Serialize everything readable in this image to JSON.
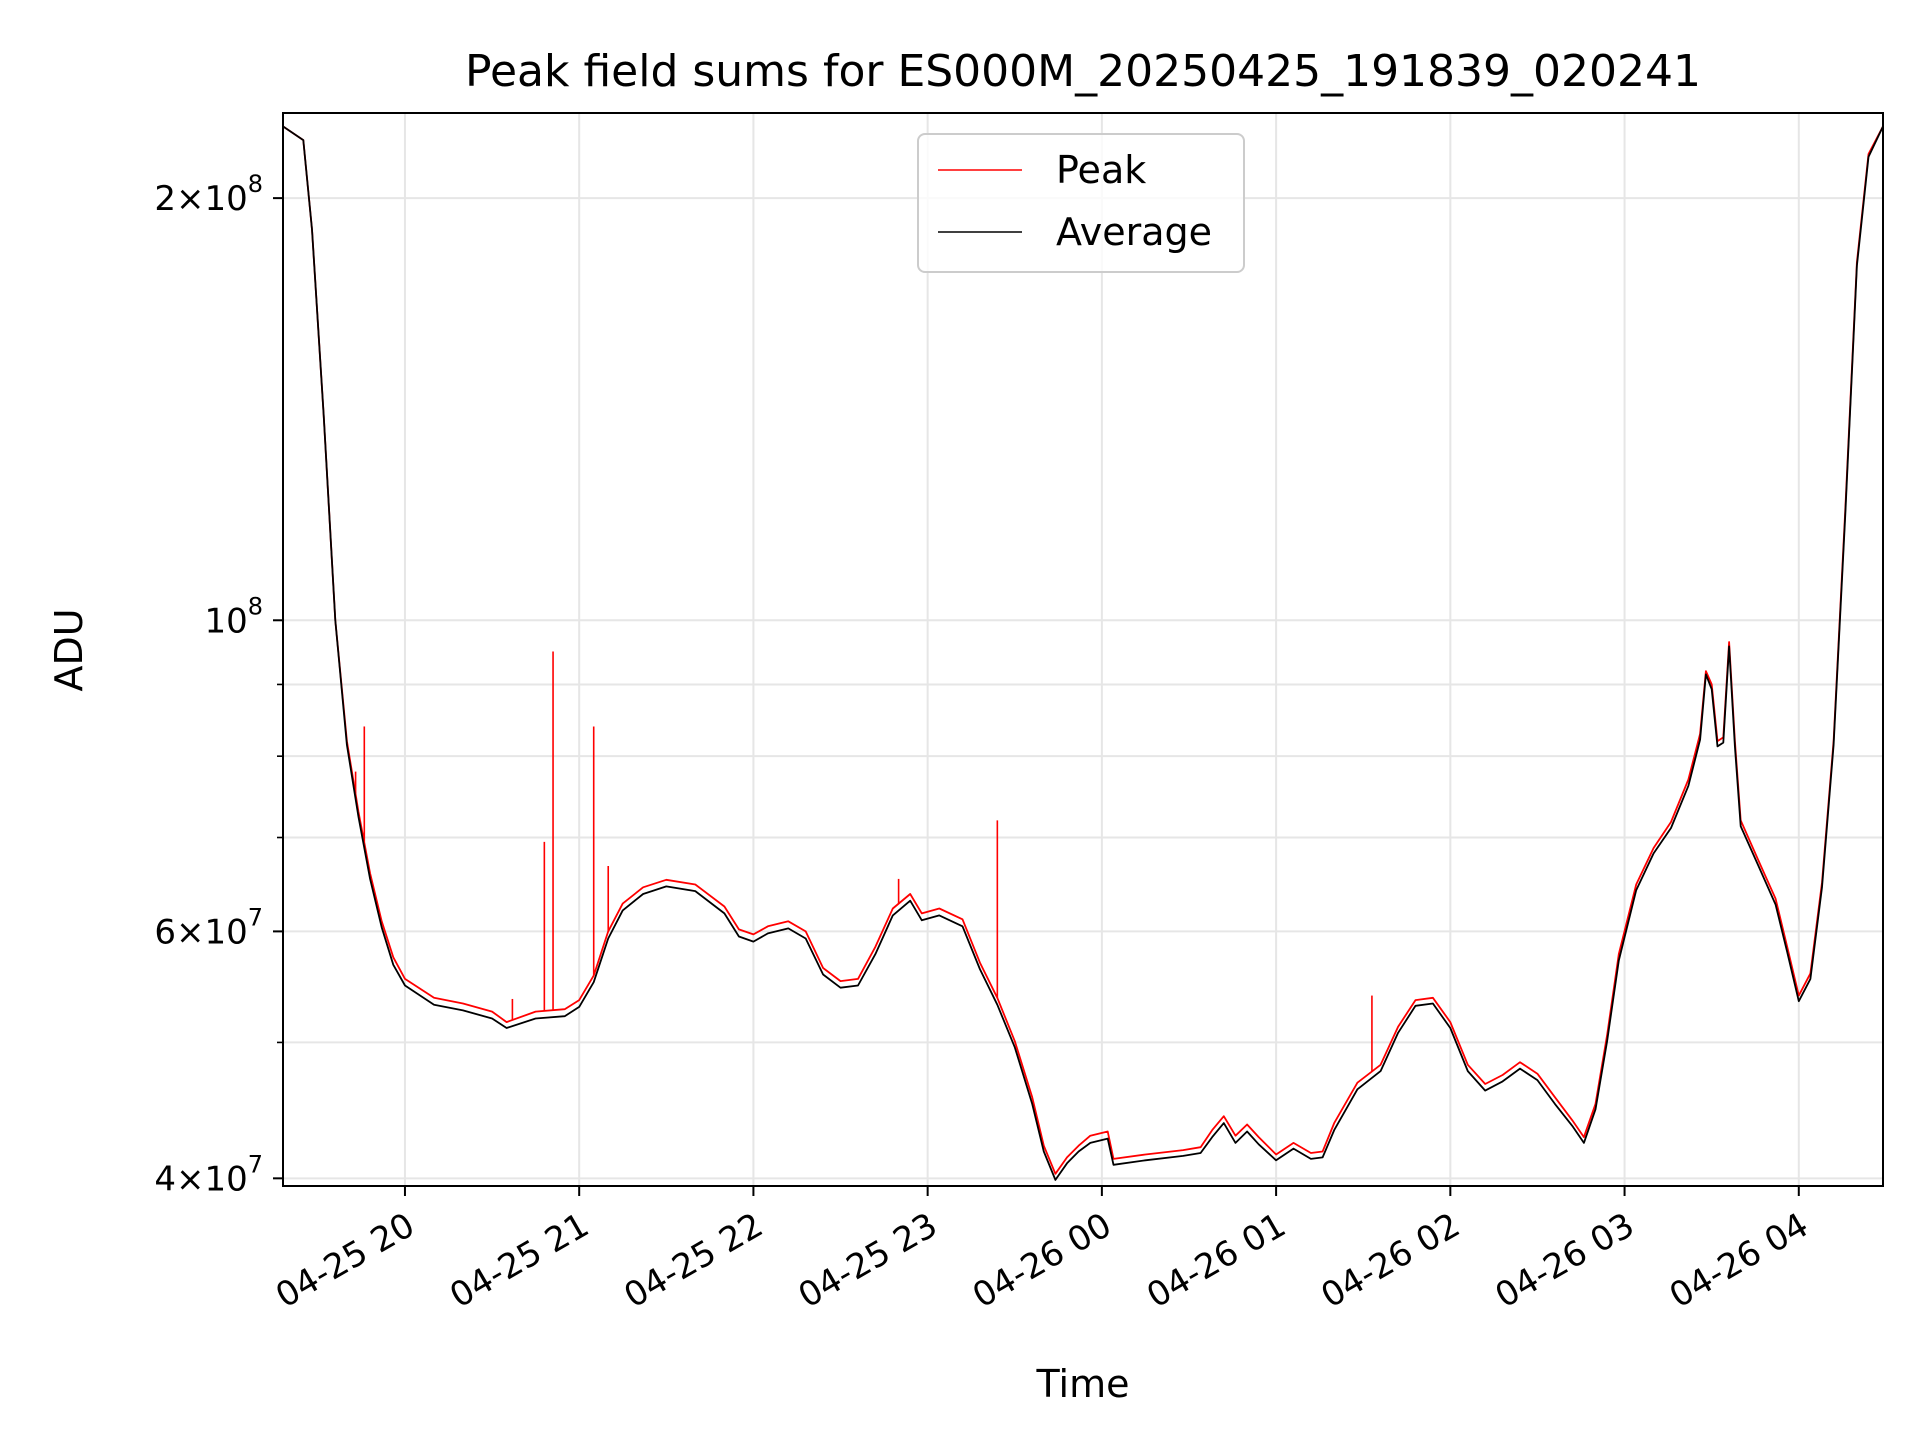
{
  "chart_data": {
    "type": "line",
    "title": "Peak field sums for ES000M_20250425_191839_020241",
    "xlabel": "Time",
    "ylabel": "ADU",
    "y_scale": "log",
    "ylim": [
      39500000,
      230000000
    ],
    "xlim": [
      "2025-04-25 19:18",
      "2025-04-26 04:29"
    ],
    "grid": true,
    "legend_position": "top-center",
    "x_ticks": [
      {
        "t": "2025-04-25 20:00",
        "label": "04-25 20"
      },
      {
        "t": "2025-04-25 21:00",
        "label": "04-25 21"
      },
      {
        "t": "2025-04-25 22:00",
        "label": "04-25 22"
      },
      {
        "t": "2025-04-25 23:00",
        "label": "04-25 23"
      },
      {
        "t": "2025-04-26 00:00",
        "label": "04-26 00"
      },
      {
        "t": "2025-04-26 01:00",
        "label": "04-26 01"
      },
      {
        "t": "2025-04-26 02:00",
        "label": "04-26 02"
      },
      {
        "t": "2025-04-26 03:00",
        "label": "04-26 03"
      },
      {
        "t": "2025-04-26 04:00",
        "label": "04-26 04"
      }
    ],
    "y_ticks": [
      {
        "value": 40000000,
        "mantissa": "4",
        "base": "10",
        "exp": "7"
      },
      {
        "value": 60000000,
        "mantissa": "6",
        "base": "10",
        "exp": "7"
      },
      {
        "value": 100000000,
        "mantissa": "",
        "base": "10",
        "exp": "8"
      },
      {
        "value": 200000000,
        "mantissa": "2",
        "base": "10",
        "exp": "8"
      }
    ],
    "y_minor_ticks": [
      50000000,
      70000000,
      80000000,
      90000000
    ],
    "series": [
      {
        "name": "Peak",
        "color": "#ff0000",
        "points": [
          [
            "2025-04-25 19:18",
            225000000
          ],
          [
            "2025-04-25 19:25",
            220000000
          ],
          [
            "2025-04-25 19:28",
            190000000
          ],
          [
            "2025-04-25 19:32",
            140000000
          ],
          [
            "2025-04-25 19:36",
            100000000
          ],
          [
            "2025-04-25 19:40",
            82000000
          ],
          [
            "2025-04-25 19:44",
            73000000
          ],
          [
            "2025-04-25 19:48",
            66000000
          ],
          [
            "2025-04-25 19:52",
            61000000
          ],
          [
            "2025-04-25 19:56",
            57500000
          ],
          [
            "2025-04-25 20:00",
            55500000
          ],
          [
            "2025-04-25 20:10",
            53800000
          ],
          [
            "2025-04-25 20:20",
            53300000
          ],
          [
            "2025-04-25 20:30",
            52600000
          ],
          [
            "2025-04-25 20:35",
            51700000
          ],
          [
            "2025-04-25 20:45",
            52600000
          ],
          [
            "2025-04-25 20:55",
            52800000
          ],
          [
            "2025-04-25 21:00",
            53600000
          ],
          [
            "2025-04-25 21:05",
            55800000
          ],
          [
            "2025-04-25 21:10",
            60000000
          ],
          [
            "2025-04-25 21:15",
            62800000
          ],
          [
            "2025-04-25 21:22",
            64500000
          ],
          [
            "2025-04-25 21:30",
            65300000
          ],
          [
            "2025-04-25 21:40",
            64800000
          ],
          [
            "2025-04-25 21:50",
            62500000
          ],
          [
            "2025-04-25 21:55",
            60200000
          ],
          [
            "2025-04-25 22:00",
            59700000
          ],
          [
            "2025-04-25 22:05",
            60500000
          ],
          [
            "2025-04-25 22:12",
            61000000
          ],
          [
            "2025-04-25 22:18",
            60000000
          ],
          [
            "2025-04-25 22:24",
            56500000
          ],
          [
            "2025-04-25 22:30",
            55300000
          ],
          [
            "2025-04-25 22:36",
            55500000
          ],
          [
            "2025-04-25 22:42",
            58500000
          ],
          [
            "2025-04-25 22:48",
            62300000
          ],
          [
            "2025-04-25 22:54",
            63800000
          ],
          [
            "2025-04-25 22:58",
            61800000
          ],
          [
            "2025-04-25 23:04",
            62300000
          ],
          [
            "2025-04-25 23:12",
            61200000
          ],
          [
            "2025-04-25 23:18",
            57000000
          ],
          [
            "2025-04-25 23:24",
            53800000
          ],
          [
            "2025-04-25 23:30",
            50100000
          ],
          [
            "2025-04-25 23:36",
            45700000
          ],
          [
            "2025-04-25 23:40",
            42200000
          ],
          [
            "2025-04-25 23:44",
            40300000
          ],
          [
            "2025-04-25 23:48",
            41400000
          ],
          [
            "2025-04-25 23:52",
            42200000
          ],
          [
            "2025-04-25 23:56",
            42900000
          ],
          [
            "2025-04-26 00:02",
            43200000
          ],
          [
            "2025-04-26 00:04",
            41300000
          ],
          [
            "2025-04-26 00:15",
            41600000
          ],
          [
            "2025-04-26 00:28",
            41900000
          ],
          [
            "2025-04-26 00:34",
            42100000
          ],
          [
            "2025-04-26 00:38",
            43300000
          ],
          [
            "2025-04-26 00:42",
            44300000
          ],
          [
            "2025-04-26 00:46",
            42900000
          ],
          [
            "2025-04-26 00:50",
            43700000
          ],
          [
            "2025-04-26 00:54",
            42800000
          ],
          [
            "2025-04-26 01:00",
            41600000
          ],
          [
            "2025-04-26 01:06",
            42400000
          ],
          [
            "2025-04-26 01:12",
            41700000
          ],
          [
            "2025-04-26 01:16",
            41800000
          ],
          [
            "2025-04-26 01:20",
            43800000
          ],
          [
            "2025-04-26 01:28",
            46800000
          ],
          [
            "2025-04-26 01:36",
            48200000
          ],
          [
            "2025-04-26 01:42",
            51300000
          ],
          [
            "2025-04-26 01:48",
            53600000
          ],
          [
            "2025-04-26 01:54",
            53800000
          ],
          [
            "2025-04-26 02:00",
            51700000
          ],
          [
            "2025-04-26 02:06",
            48200000
          ],
          [
            "2025-04-26 02:12",
            46700000
          ],
          [
            "2025-04-26 02:18",
            47400000
          ],
          [
            "2025-04-26 02:24",
            48400000
          ],
          [
            "2025-04-26 02:30",
            47500000
          ],
          [
            "2025-04-26 02:36",
            45700000
          ],
          [
            "2025-04-26 02:42",
            44000000
          ],
          [
            "2025-04-26 02:46",
            42800000
          ],
          [
            "2025-04-26 02:50",
            45200000
          ],
          [
            "2025-04-26 02:54",
            50600000
          ],
          [
            "2025-04-26 02:58",
            57800000
          ],
          [
            "2025-04-26 03:04",
            64800000
          ],
          [
            "2025-04-26 03:10",
            68800000
          ],
          [
            "2025-04-26 03:16",
            71800000
          ],
          [
            "2025-04-26 03:22",
            77000000
          ],
          [
            "2025-04-26 03:26",
            83000000
          ],
          [
            "2025-04-26 03:28",
            92000000
          ],
          [
            "2025-04-26 03:30",
            90000000
          ],
          [
            "2025-04-26 03:32",
            82000000
          ],
          [
            "2025-04-26 03:34",
            82500000
          ],
          [
            "2025-04-26 03:36",
            96500000
          ],
          [
            "2025-04-26 03:38",
            82000000
          ],
          [
            "2025-04-26 03:40",
            72000000
          ],
          [
            "2025-04-26 03:46",
            67500000
          ],
          [
            "2025-04-26 03:52",
            63300000
          ],
          [
            "2025-04-26 03:56",
            58500000
          ],
          [
            "2025-04-26 04:00",
            54000000
          ],
          [
            "2025-04-26 04:04",
            56000000
          ],
          [
            "2025-04-26 04:08",
            65000000
          ],
          [
            "2025-04-26 04:12",
            82000000
          ],
          [
            "2025-04-26 04:16",
            120000000
          ],
          [
            "2025-04-26 04:20",
            180000000
          ],
          [
            "2025-04-26 04:24",
            215000000
          ],
          [
            "2025-04-26 04:29",
            225000000
          ]
        ],
        "spikes": [
          [
            "2025-04-25 19:43",
            78000000
          ],
          [
            "2025-04-25 19:46",
            84000000
          ],
          [
            "2025-04-25 20:37",
            53700000
          ],
          [
            "2025-04-25 20:48",
            69500000
          ],
          [
            "2025-04-25 20:51",
            95000000
          ],
          [
            "2025-04-25 21:05",
            84000000
          ],
          [
            "2025-04-25 21:10",
            66800000
          ],
          [
            "2025-04-25 22:50",
            65400000
          ],
          [
            "2025-04-25 23:24",
            72000000
          ],
          [
            "2025-04-26 01:33",
            54000000
          ]
        ]
      },
      {
        "name": "Average",
        "color": "#000000",
        "points": [
          [
            "2025-04-25 19:18",
            225000000
          ],
          [
            "2025-04-25 19:25",
            220000000
          ],
          [
            "2025-04-25 19:28",
            190000000
          ],
          [
            "2025-04-25 19:32",
            140000000
          ],
          [
            "2025-04-25 19:36",
            100000000
          ],
          [
            "2025-04-25 19:40",
            81500000
          ],
          [
            "2025-04-25 19:44",
            72400000
          ],
          [
            "2025-04-25 19:48",
            65400000
          ],
          [
            "2025-04-25 19:52",
            60400000
          ],
          [
            "2025-04-25 19:56",
            56800000
          ],
          [
            "2025-04-25 20:00",
            54900000
          ],
          [
            "2025-04-25 20:10",
            53200000
          ],
          [
            "2025-04-25 20:20",
            52700000
          ],
          [
            "2025-04-25 20:30",
            52000000
          ],
          [
            "2025-04-25 20:35",
            51200000
          ],
          [
            "2025-04-25 20:45",
            52000000
          ],
          [
            "2025-04-25 20:55",
            52200000
          ],
          [
            "2025-04-25 21:00",
            53000000
          ],
          [
            "2025-04-25 21:05",
            55200000
          ],
          [
            "2025-04-25 21:10",
            59300000
          ],
          [
            "2025-04-25 21:15",
            62100000
          ],
          [
            "2025-04-25 21:22",
            63800000
          ],
          [
            "2025-04-25 21:30",
            64600000
          ],
          [
            "2025-04-25 21:40",
            64100000
          ],
          [
            "2025-04-25 21:50",
            61800000
          ],
          [
            "2025-04-25 21:55",
            59500000
          ],
          [
            "2025-04-25 22:00",
            59000000
          ],
          [
            "2025-04-25 22:05",
            59800000
          ],
          [
            "2025-04-25 22:12",
            60300000
          ],
          [
            "2025-04-25 22:18",
            59300000
          ],
          [
            "2025-04-25 22:24",
            55900000
          ],
          [
            "2025-04-25 22:30",
            54700000
          ],
          [
            "2025-04-25 22:36",
            54900000
          ],
          [
            "2025-04-25 22:42",
            57800000
          ],
          [
            "2025-04-25 22:48",
            61600000
          ],
          [
            "2025-04-25 22:54",
            63100000
          ],
          [
            "2025-04-25 22:58",
            61100000
          ],
          [
            "2025-04-25 23:04",
            61600000
          ],
          [
            "2025-04-25 23:12",
            60500000
          ],
          [
            "2025-04-25 23:18",
            56400000
          ],
          [
            "2025-04-25 23:24",
            53200000
          ],
          [
            "2025-04-25 23:30",
            49600000
          ],
          [
            "2025-04-25 23:36",
            45200000
          ],
          [
            "2025-04-25 23:40",
            41800000
          ],
          [
            "2025-04-25 23:44",
            39900000
          ],
          [
            "2025-04-25 23:48",
            41000000
          ],
          [
            "2025-04-25 23:52",
            41800000
          ],
          [
            "2025-04-25 23:56",
            42400000
          ],
          [
            "2025-04-26 00:02",
            42700000
          ],
          [
            "2025-04-26 00:04",
            40900000
          ],
          [
            "2025-04-26 00:15",
            41200000
          ],
          [
            "2025-04-26 00:28",
            41500000
          ],
          [
            "2025-04-26 00:34",
            41700000
          ],
          [
            "2025-04-26 00:38",
            42800000
          ],
          [
            "2025-04-26 00:42",
            43800000
          ],
          [
            "2025-04-26 00:46",
            42400000
          ],
          [
            "2025-04-26 00:50",
            43200000
          ],
          [
            "2025-04-26 00:54",
            42300000
          ],
          [
            "2025-04-26 01:00",
            41200000
          ],
          [
            "2025-04-26 01:06",
            42000000
          ],
          [
            "2025-04-26 01:12",
            41300000
          ],
          [
            "2025-04-26 01:16",
            41400000
          ],
          [
            "2025-04-26 01:20",
            43300000
          ],
          [
            "2025-04-26 01:28",
            46300000
          ],
          [
            "2025-04-26 01:36",
            47700000
          ],
          [
            "2025-04-26 01:42",
            50800000
          ],
          [
            "2025-04-26 01:48",
            53100000
          ],
          [
            "2025-04-26 01:54",
            53300000
          ],
          [
            "2025-04-26 02:00",
            51200000
          ],
          [
            "2025-04-26 02:06",
            47700000
          ],
          [
            "2025-04-26 02:12",
            46200000
          ],
          [
            "2025-04-26 02:18",
            46900000
          ],
          [
            "2025-04-26 02:24",
            47900000
          ],
          [
            "2025-04-26 02:30",
            47000000
          ],
          [
            "2025-04-26 02:36",
            45200000
          ],
          [
            "2025-04-26 02:42",
            43600000
          ],
          [
            "2025-04-26 02:46",
            42400000
          ],
          [
            "2025-04-26 02:50",
            44800000
          ],
          [
            "2025-04-26 02:54",
            50100000
          ],
          [
            "2025-04-26 02:58",
            57200000
          ],
          [
            "2025-04-26 03:04",
            64200000
          ],
          [
            "2025-04-26 03:10",
            68200000
          ],
          [
            "2025-04-26 03:16",
            71100000
          ],
          [
            "2025-04-26 03:22",
            76200000
          ],
          [
            "2025-04-26 03:26",
            82200000
          ],
          [
            "2025-04-26 03:28",
            91500000
          ],
          [
            "2025-04-26 03:30",
            89300000
          ],
          [
            "2025-04-26 03:32",
            81300000
          ],
          [
            "2025-04-26 03:34",
            81800000
          ],
          [
            "2025-04-26 03:36",
            95800000
          ],
          [
            "2025-04-26 03:38",
            81300000
          ],
          [
            "2025-04-26 03:40",
            71300000
          ],
          [
            "2025-04-26 03:46",
            66900000
          ],
          [
            "2025-04-26 03:52",
            62700000
          ],
          [
            "2025-04-26 03:56",
            58000000
          ],
          [
            "2025-04-26 04:00",
            53500000
          ],
          [
            "2025-04-26 04:04",
            55500000
          ],
          [
            "2025-04-26 04:08",
            64500000
          ],
          [
            "2025-04-26 04:12",
            81500000
          ],
          [
            "2025-04-26 04:16",
            119000000
          ],
          [
            "2025-04-26 04:20",
            179000000
          ],
          [
            "2025-04-26 04:24",
            214000000
          ],
          [
            "2025-04-26 04:29",
            225000000
          ]
        ]
      }
    ]
  },
  "legend": {
    "items": [
      {
        "label": "Peak",
        "color": "#ff0000"
      },
      {
        "label": "Average",
        "color": "#000000"
      }
    ]
  }
}
